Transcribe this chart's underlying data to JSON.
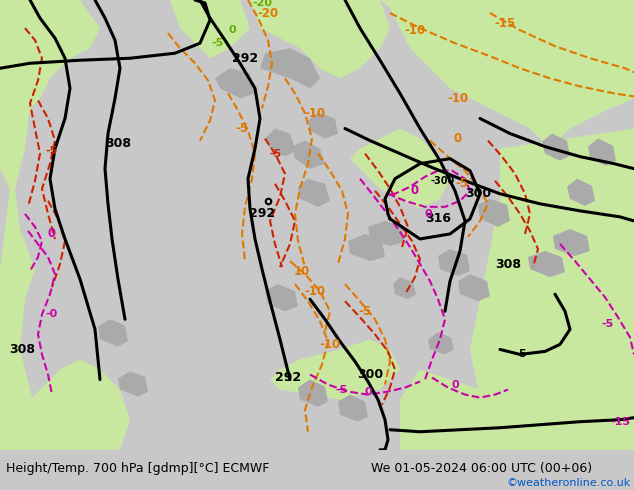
{
  "title_left": "Height/Temp. 700 hPa [gdmp][°C] ECMWF",
  "title_right": "We 01-05-2024 06:00 UTC (00+06)",
  "credit": "©weatheronline.co.uk",
  "bg_color": "#c8c8c8",
  "land_green": "#c8e8a0",
  "gray_terrain": "#aaaaaa",
  "figwidth": 6.34,
  "figheight": 4.9,
  "dpi": 100,
  "bottom_bar_color": "#e0e0e0",
  "title_fontsize": 9.0,
  "credit_fontsize": 8.0,
  "credit_color": "#0055cc",
  "black": "#000000",
  "orange": "#e07800",
  "red": "#cc2200",
  "magenta": "#cc00aa",
  "green_line": "#66aa00"
}
